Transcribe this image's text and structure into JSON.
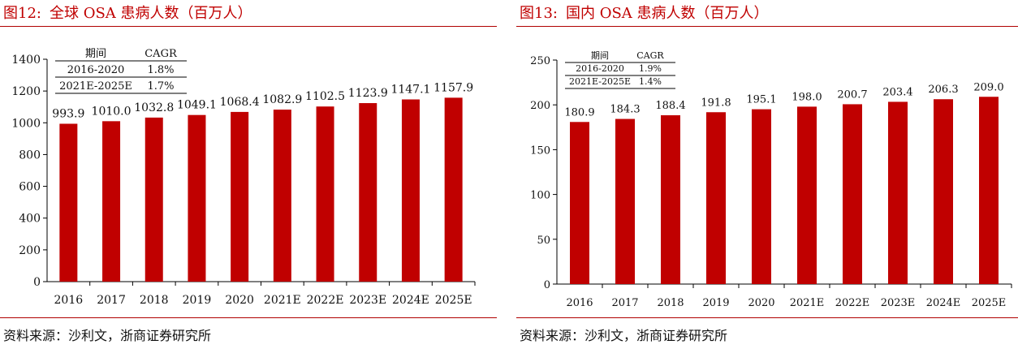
{
  "colors": {
    "accent": "#c00000",
    "bar": "#c00000",
    "axis": "#000000"
  },
  "left": {
    "figure_number": "图12:",
    "title": "全球 OSA 患病人数（百万人）",
    "source": "资料来源：沙利文，浙商证券研究所",
    "cagr_table": {
      "headers": [
        "期间",
        "CAGR"
      ],
      "rows": [
        [
          "2016-2020",
          "1.8%"
        ],
        [
          "2021E-2025E",
          "1.7%"
        ]
      ]
    }
  },
  "right": {
    "figure_number": "图13:",
    "title": "国内 OSA 患病人数（百万人）",
    "source": "资料来源：沙利文，浙商证券研究所",
    "cagr_table": {
      "headers": [
        "期间",
        "CAGR"
      ],
      "rows": [
        [
          "2016-2020",
          "1.9%"
        ],
        [
          "2021E-2025E",
          "1.4%"
        ]
      ]
    }
  },
  "chart_data": [
    {
      "type": "bar",
      "title": "全球 OSA 患病人数（百万人）",
      "categories": [
        "2016",
        "2017",
        "2018",
        "2019",
        "2020",
        "2021E",
        "2022E",
        "2023E",
        "2024E",
        "2025E"
      ],
      "values": [
        993.9,
        1010.0,
        1032.8,
        1049.1,
        1068.4,
        1082.9,
        1102.5,
        1123.9,
        1147.1,
        1157.9
      ],
      "value_labels": [
        "993.9",
        "1010.0",
        "1032.8",
        "1049.1",
        "1068.4",
        "1082.9",
        "1102.5",
        "1123.9",
        "1147.1",
        "1157.9"
      ],
      "yticks": [
        "0",
        "200",
        "400",
        "600",
        "800",
        "1000",
        "1200",
        "1400"
      ],
      "ylim": [
        0,
        1400
      ],
      "grid": false,
      "xlabel": "",
      "ylabel": ""
    },
    {
      "type": "bar",
      "title": "国内 OSA 患病人数（百万人）",
      "categories": [
        "2016",
        "2017",
        "2018",
        "2019",
        "2020",
        "2021E",
        "2022E",
        "2023E",
        "2024E",
        "2025E"
      ],
      "values": [
        180.9,
        184.3,
        188.4,
        191.8,
        195.1,
        198.0,
        200.7,
        203.4,
        206.3,
        209.0
      ],
      "value_labels": [
        "180.9",
        "184.3",
        "188.4",
        "191.8",
        "195.1",
        "198.0",
        "200.7",
        "203.4",
        "206.3",
        "209.0"
      ],
      "yticks": [
        "0",
        "50",
        "100",
        "150",
        "200",
        "250"
      ],
      "ylim": [
        0,
        250
      ],
      "grid": false,
      "xlabel": "",
      "ylabel": ""
    }
  ]
}
